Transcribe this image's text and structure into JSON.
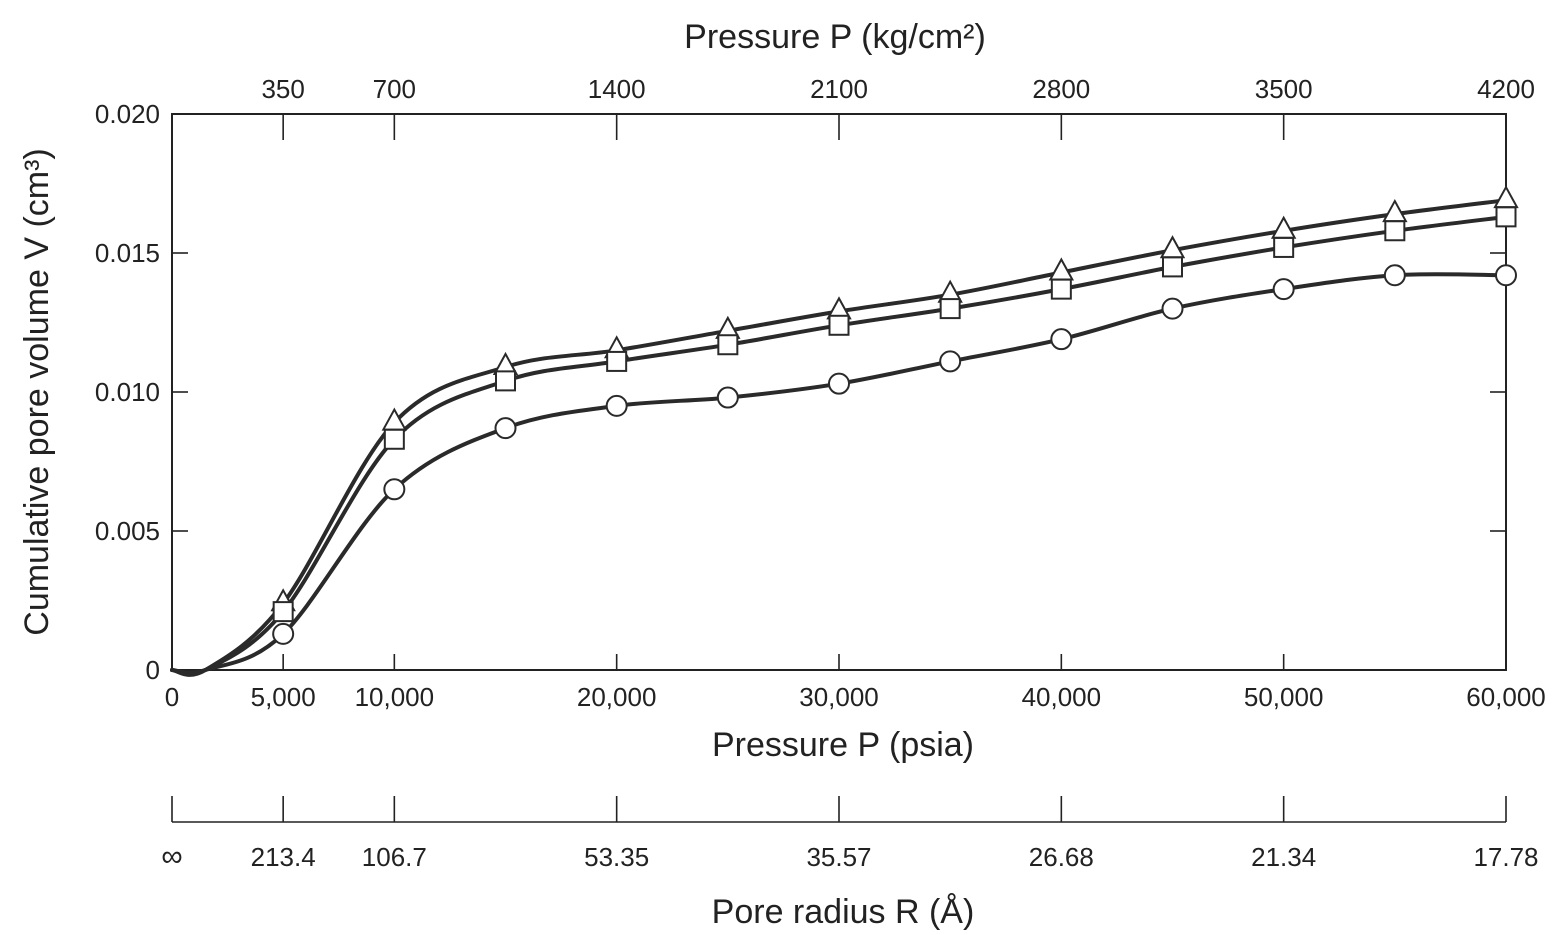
{
  "chart_data": {
    "type": "line",
    "title": "",
    "xlabel": "Pressure P (psia)",
    "ylabel": "Cumulative pore volume V (cm³)",
    "xlim": [
      0,
      60000
    ],
    "ylim": [
      0,
      0.02
    ],
    "grid": false,
    "x_ticks": [
      0,
      5000,
      10000,
      20000,
      30000,
      40000,
      50000,
      60000
    ],
    "x_tick_labels": [
      "0",
      "5,000",
      "10,000",
      "20,000",
      "30,000",
      "40,000",
      "50,000",
      "60,000"
    ],
    "y_ticks": [
      0,
      0.005,
      0.01,
      0.015,
      0.02
    ],
    "y_tick_labels": [
      "0",
      "0.005",
      "0.010",
      "0.015",
      "0.020"
    ],
    "top_axis": {
      "label": "Pressure P (kg/cm²)",
      "ticks_psia": [
        5000,
        10000,
        20000,
        30000,
        40000,
        50000,
        60000
      ],
      "tick_labels": [
        "350",
        "700",
        "1400",
        "2100",
        "2800",
        "3500",
        "4200"
      ]
    },
    "bottom_axis": {
      "label": "Pore radius R (Å)",
      "ticks_psia": [
        0,
        5000,
        10000,
        20000,
        30000,
        40000,
        50000,
        60000
      ],
      "tick_labels": [
        "∞",
        "213.4",
        "106.7",
        "53.35",
        "35.57",
        "26.68",
        "21.34",
        "17.78"
      ]
    },
    "series": [
      {
        "marker": "triangle",
        "x": [
          5000,
          10000,
          15000,
          20000,
          25000,
          30000,
          35000,
          40000,
          45000,
          50000,
          55000,
          60000
        ],
        "values": [
          0.0024,
          0.0089,
          0.0109,
          0.0115,
          0.0122,
          0.0129,
          0.0135,
          0.0143,
          0.0151,
          0.0158,
          0.0164,
          0.0169
        ]
      },
      {
        "marker": "square",
        "x": [
          5000,
          10000,
          15000,
          20000,
          25000,
          30000,
          35000,
          40000,
          45000,
          50000,
          55000,
          60000
        ],
        "values": [
          0.0021,
          0.0083,
          0.0104,
          0.0111,
          0.0117,
          0.0124,
          0.013,
          0.0137,
          0.0145,
          0.0152,
          0.0158,
          0.0163
        ]
      },
      {
        "marker": "circle",
        "x": [
          5000,
          10000,
          15000,
          20000,
          25000,
          30000,
          35000,
          40000,
          45000,
          50000,
          55000,
          60000
        ],
        "values": [
          0.0013,
          0.0065,
          0.0087,
          0.0095,
          0.0098,
          0.0103,
          0.0111,
          0.0119,
          0.013,
          0.0137,
          0.0142,
          0.0142
        ]
      }
    ]
  }
}
